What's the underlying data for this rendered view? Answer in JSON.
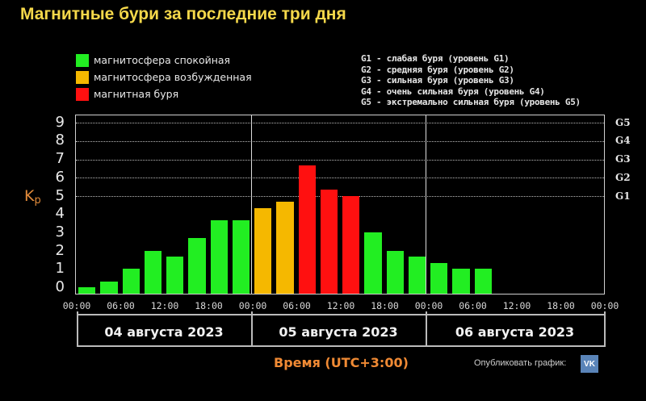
{
  "title": "Магнитные бури за последние три дня",
  "legend": [
    {
      "label": "магнитосфера спокойная",
      "color": "#22ee22"
    },
    {
      "label": "магнитосфера возбужденная",
      "color": "#f5b800"
    },
    {
      "label": "магнитная буря",
      "color": "#ff1010"
    }
  ],
  "g_legend": [
    "G1 - слабая буря (уровень G1)",
    "G2 - средняя буря (уровень G2)",
    "G3 - сильная буря (уровень G3)",
    "G4 - очень сильная буря (уровень G4)",
    "G5 - экстремально сильная буря (уровень G5)"
  ],
  "y_axis_label_main": "K",
  "y_axis_label_sub": "p",
  "y_ticks": [
    "0",
    "1",
    "2",
    "3",
    "4",
    "5",
    "6",
    "7",
    "8",
    "9"
  ],
  "g_ticks": [
    {
      "label": "G1",
      "value": 5
    },
    {
      "label": "G2",
      "value": 6
    },
    {
      "label": "G3",
      "value": 7
    },
    {
      "label": "G4",
      "value": 8
    },
    {
      "label": "G5",
      "value": 9
    }
  ],
  "x_ticks": [
    "00:00",
    "06:00",
    "12:00",
    "18:00",
    "00:00",
    "06:00",
    "12:00",
    "18:00",
    "00:00",
    "06:00",
    "12:00",
    "18:00",
    "00:00"
  ],
  "dates": [
    "04 августа 2023",
    "05 августа 2023",
    "06 августа 2023"
  ],
  "time_label": "Время (UTC+3:00)",
  "publish_label": "Опубликовать график:",
  "vk_label": "VK",
  "chart_data": {
    "type": "bar",
    "title": "Магнитные бури за последние три дня",
    "xlabel": "Время (UTC+3:00)",
    "ylabel": "Kp",
    "ylim": [
      0,
      9
    ],
    "grid": "dotted horizontal lines at Kp 5-9 (G1-G5)",
    "categories": [
      "04.08 00:00",
      "04.08 03:00",
      "04.08 06:00",
      "04.08 09:00",
      "04.08 12:00",
      "04.08 15:00",
      "04.08 18:00",
      "04.08 21:00",
      "05.08 00:00",
      "05.08 03:00",
      "05.08 06:00",
      "05.08 09:00",
      "05.08 12:00",
      "05.08 15:00",
      "05.08 18:00",
      "05.08 21:00",
      "06.08 00:00",
      "06.08 03:00",
      "06.08 06:00"
    ],
    "values": [
      0.0,
      0.33,
      1.0,
      2.0,
      1.67,
      2.67,
      3.67,
      3.67,
      4.33,
      4.67,
      6.67,
      5.33,
      5.0,
      3.0,
      2.0,
      1.67,
      1.33,
      1.0,
      1.0
    ],
    "colors": [
      "green",
      "green",
      "green",
      "green",
      "green",
      "green",
      "green",
      "green",
      "orange",
      "orange",
      "red",
      "red",
      "red",
      "green",
      "green",
      "green",
      "green",
      "green",
      "green"
    ],
    "legend": [
      "магнитосфера спокойная",
      "магнитосфера возбужденная",
      "магнитная буря"
    ],
    "legend_position": "top-left",
    "secondary_y_labels": [
      "G1",
      "G2",
      "G3",
      "G4",
      "G5"
    ]
  }
}
